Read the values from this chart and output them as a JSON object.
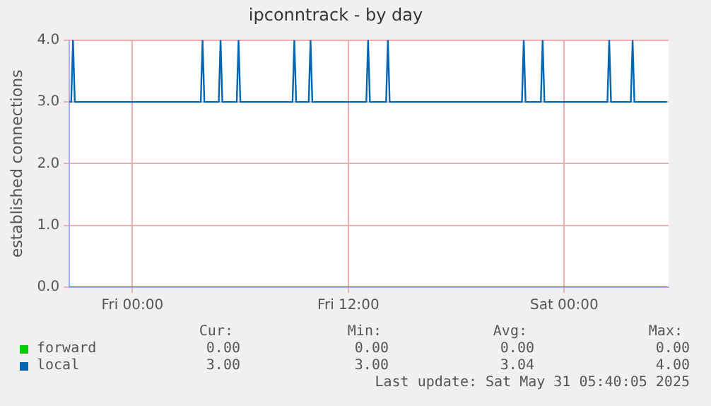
{
  "chart_data": {
    "type": "line",
    "title": "ipconntrack - by day",
    "ylabel": "established connections",
    "xlim": [
      "2025-05-29T20:30",
      "2025-05-31T05:48"
    ],
    "xticks": [
      {
        "value": "2025-05-30T00:00",
        "label": "Fri 00:00"
      },
      {
        "value": "2025-05-30T12:00",
        "label": "Fri 12:00"
      },
      {
        "value": "2025-05-31T00:00",
        "label": "Sat 00:00"
      }
    ],
    "ylim": [
      0,
      4
    ],
    "yticks": [
      {
        "value": 0,
        "label": "0.0"
      },
      {
        "value": 1,
        "label": "1.0"
      },
      {
        "value": 2,
        "label": "2.0"
      },
      {
        "value": 3,
        "label": "3.0"
      },
      {
        "value": 4,
        "label": "4.0"
      }
    ],
    "grid": true,
    "legend": "bottom",
    "marker": "none",
    "line_style": "solid",
    "series": [
      {
        "name": "forward",
        "color": "#00cc00",
        "x": [
          "2025-05-29T20:30",
          "2025-05-31T05:42"
        ],
        "values": [
          0,
          0
        ]
      },
      {
        "name": "local",
        "color": "#0066b3",
        "x": [
          "2025-05-29T20:30",
          "2025-05-29T20:36",
          "2025-05-29T20:42",
          "2025-05-29T20:48",
          "2025-05-30T03:48",
          "2025-05-30T03:54",
          "2025-05-30T04:00",
          "2025-05-30T04:48",
          "2025-05-30T04:54",
          "2025-05-30T05:00",
          "2025-05-30T05:48",
          "2025-05-30T05:54",
          "2025-05-30T06:00",
          "2025-05-30T08:54",
          "2025-05-30T09:00",
          "2025-05-30T09:06",
          "2025-05-30T09:48",
          "2025-05-30T09:54",
          "2025-05-30T10:00",
          "2025-05-30T13:00",
          "2025-05-30T13:06",
          "2025-05-30T13:12",
          "2025-05-30T14:06",
          "2025-05-30T14:12",
          "2025-05-30T14:18",
          "2025-05-30T21:39",
          "2025-05-30T21:45",
          "2025-05-30T21:51",
          "2025-05-30T22:42",
          "2025-05-30T22:48",
          "2025-05-30T22:54",
          "2025-05-31T02:24",
          "2025-05-31T02:30",
          "2025-05-31T02:36",
          "2025-05-31T03:42",
          "2025-05-31T03:48",
          "2025-05-31T03:54",
          "2025-05-31T05:42"
        ],
        "values": [
          3,
          3,
          4,
          3,
          3,
          4,
          3,
          3,
          4,
          3,
          3,
          4,
          3,
          3,
          4,
          3,
          3,
          4,
          3,
          3,
          4,
          3,
          3,
          4,
          3,
          3,
          4,
          3,
          3,
          4,
          3,
          3,
          4,
          3,
          3,
          4,
          3,
          3
        ]
      }
    ],
    "annotations": [
      "Cur:",
      "Min:",
      "Avg:",
      "Max:",
      "0.00",
      "0.00",
      "0.00",
      "0.00",
      "3.00",
      "3.00",
      "3.04",
      "4.00",
      "Last update: Sat May 31 05:40:05 2025"
    ]
  }
}
